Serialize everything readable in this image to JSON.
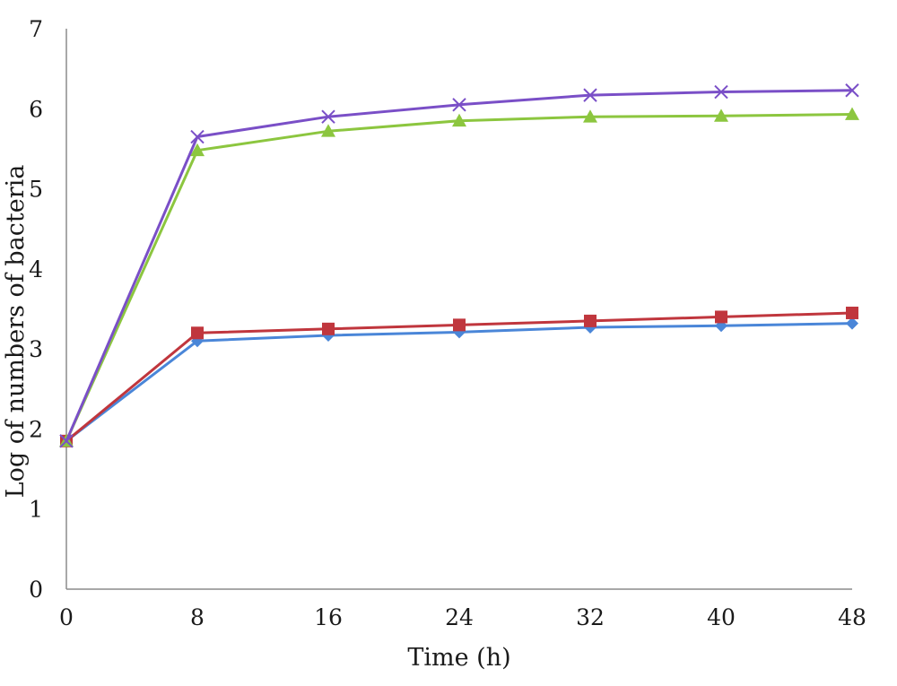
{
  "chart_data": {
    "type": "line",
    "title": "",
    "xlabel": "Time (h)",
    "ylabel": "Log of numbers of bacteria",
    "x": [
      0,
      8,
      16,
      24,
      32,
      40,
      48
    ],
    "xticks": [
      "0",
      "8",
      "16",
      "24",
      "32",
      "40",
      "48"
    ],
    "yticks": [
      "0",
      "1",
      "2",
      "3",
      "4",
      "5",
      "6",
      "7"
    ],
    "xlim": [
      0,
      48
    ],
    "ylim": [
      0,
      7
    ],
    "grid": false,
    "legend": "none",
    "series": [
      {
        "color": "#4a86d8",
        "marker": "diamond",
        "values": [
          1.85,
          3.1,
          3.17,
          3.21,
          3.27,
          3.29,
          3.32
        ]
      },
      {
        "color": "#c0363d",
        "marker": "square",
        "values": [
          1.85,
          3.2,
          3.25,
          3.3,
          3.35,
          3.4,
          3.45
        ]
      },
      {
        "color": "#8cc63f",
        "marker": "triangle",
        "values": [
          1.85,
          5.48,
          5.72,
          5.85,
          5.9,
          5.91,
          5.93
        ]
      },
      {
        "color": "#7a4fc7",
        "marker": "x",
        "values": [
          1.85,
          5.65,
          5.9,
          6.05,
          6.17,
          6.21,
          6.23
        ]
      }
    ]
  }
}
